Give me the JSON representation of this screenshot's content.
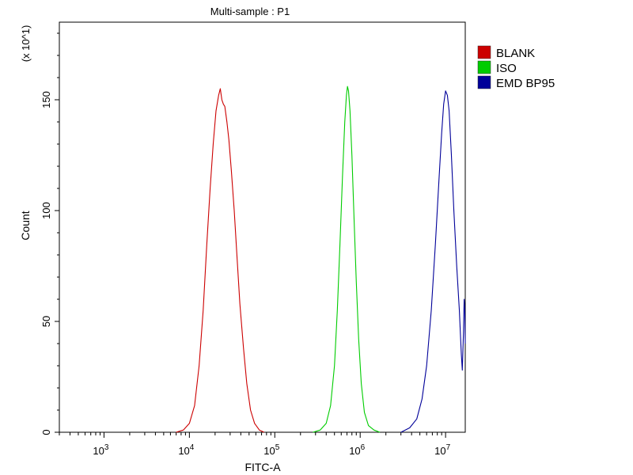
{
  "chart_data": {
    "type": "line",
    "title": "Multi-sample : P1",
    "xlabel": "FITC-A",
    "ylabel": "Count",
    "y_multiplier_label": "(x 10^1)",
    "x_scale": "log",
    "xlim": [
      300,
      17000000
    ],
    "ylim": [
      0,
      185
    ],
    "x_ticks": [
      {
        "value": 1000,
        "base": "10",
        "exp": "3"
      },
      {
        "value": 10000,
        "base": "10",
        "exp": "4"
      },
      {
        "value": 100000,
        "base": "10",
        "exp": "5"
      },
      {
        "value": 1000000,
        "base": "10",
        "exp": "6"
      },
      {
        "value": 10000000,
        "base": "10",
        "exp": "7"
      }
    ],
    "y_ticks": [
      {
        "value": 0,
        "label": "0"
      },
      {
        "value": 50,
        "label": "50"
      },
      {
        "value": 100,
        "label": "100"
      },
      {
        "value": 150,
        "label": "150"
      }
    ],
    "grid": false,
    "legend_position": "right",
    "series": [
      {
        "name": "BLANK",
        "color": "#cc0000",
        "points": [
          [
            7000,
            0
          ],
          [
            8500,
            1
          ],
          [
            10000,
            4
          ],
          [
            11500,
            12
          ],
          [
            13000,
            30
          ],
          [
            14500,
            55
          ],
          [
            16000,
            85
          ],
          [
            17500,
            110
          ],
          [
            19000,
            130
          ],
          [
            20500,
            145
          ],
          [
            22000,
            152
          ],
          [
            23000,
            155
          ],
          [
            24000,
            150
          ],
          [
            25000,
            148
          ],
          [
            26000,
            147
          ],
          [
            27500,
            140
          ],
          [
            29000,
            132
          ],
          [
            31000,
            118
          ],
          [
            33500,
            100
          ],
          [
            36000,
            80
          ],
          [
            39000,
            58
          ],
          [
            43000,
            38
          ],
          [
            47000,
            22
          ],
          [
            52000,
            10
          ],
          [
            58000,
            4
          ],
          [
            66000,
            1
          ],
          [
            75000,
            0
          ]
        ]
      },
      {
        "name": "ISO",
        "color": "#00cc00",
        "points": [
          [
            280000,
            0
          ],
          [
            340000,
            1
          ],
          [
            400000,
            4
          ],
          [
            450000,
            12
          ],
          [
            500000,
            30
          ],
          [
            540000,
            55
          ],
          [
            580000,
            85
          ],
          [
            620000,
            115
          ],
          [
            660000,
            140
          ],
          [
            690000,
            152
          ],
          [
            710000,
            156
          ],
          [
            730000,
            154
          ],
          [
            760000,
            145
          ],
          [
            800000,
            125
          ],
          [
            850000,
            95
          ],
          [
            900000,
            68
          ],
          [
            960000,
            42
          ],
          [
            1030000,
            22
          ],
          [
            1120000,
            9
          ],
          [
            1250000,
            3
          ],
          [
            1450000,
            1
          ],
          [
            1700000,
            0
          ]
        ]
      },
      {
        "name": "EMD BP95",
        "color": "#000099",
        "points": [
          [
            3000000,
            0
          ],
          [
            3800000,
            2
          ],
          [
            4600000,
            6
          ],
          [
            5300000,
            15
          ],
          [
            6000000,
            30
          ],
          [
            6800000,
            55
          ],
          [
            7600000,
            85
          ],
          [
            8400000,
            115
          ],
          [
            9000000,
            135
          ],
          [
            9500000,
            148
          ],
          [
            10000000,
            154
          ],
          [
            10500000,
            152
          ],
          [
            11000000,
            145
          ],
          [
            11700000,
            125
          ],
          [
            12500000,
            100
          ],
          [
            13500000,
            75
          ],
          [
            14500000,
            55
          ],
          [
            15300000,
            35
          ],
          [
            15700000,
            28
          ],
          [
            16200000,
            45
          ],
          [
            16500000,
            60
          ],
          [
            16800000,
            55
          ],
          [
            17000000,
            40
          ]
        ]
      }
    ]
  }
}
